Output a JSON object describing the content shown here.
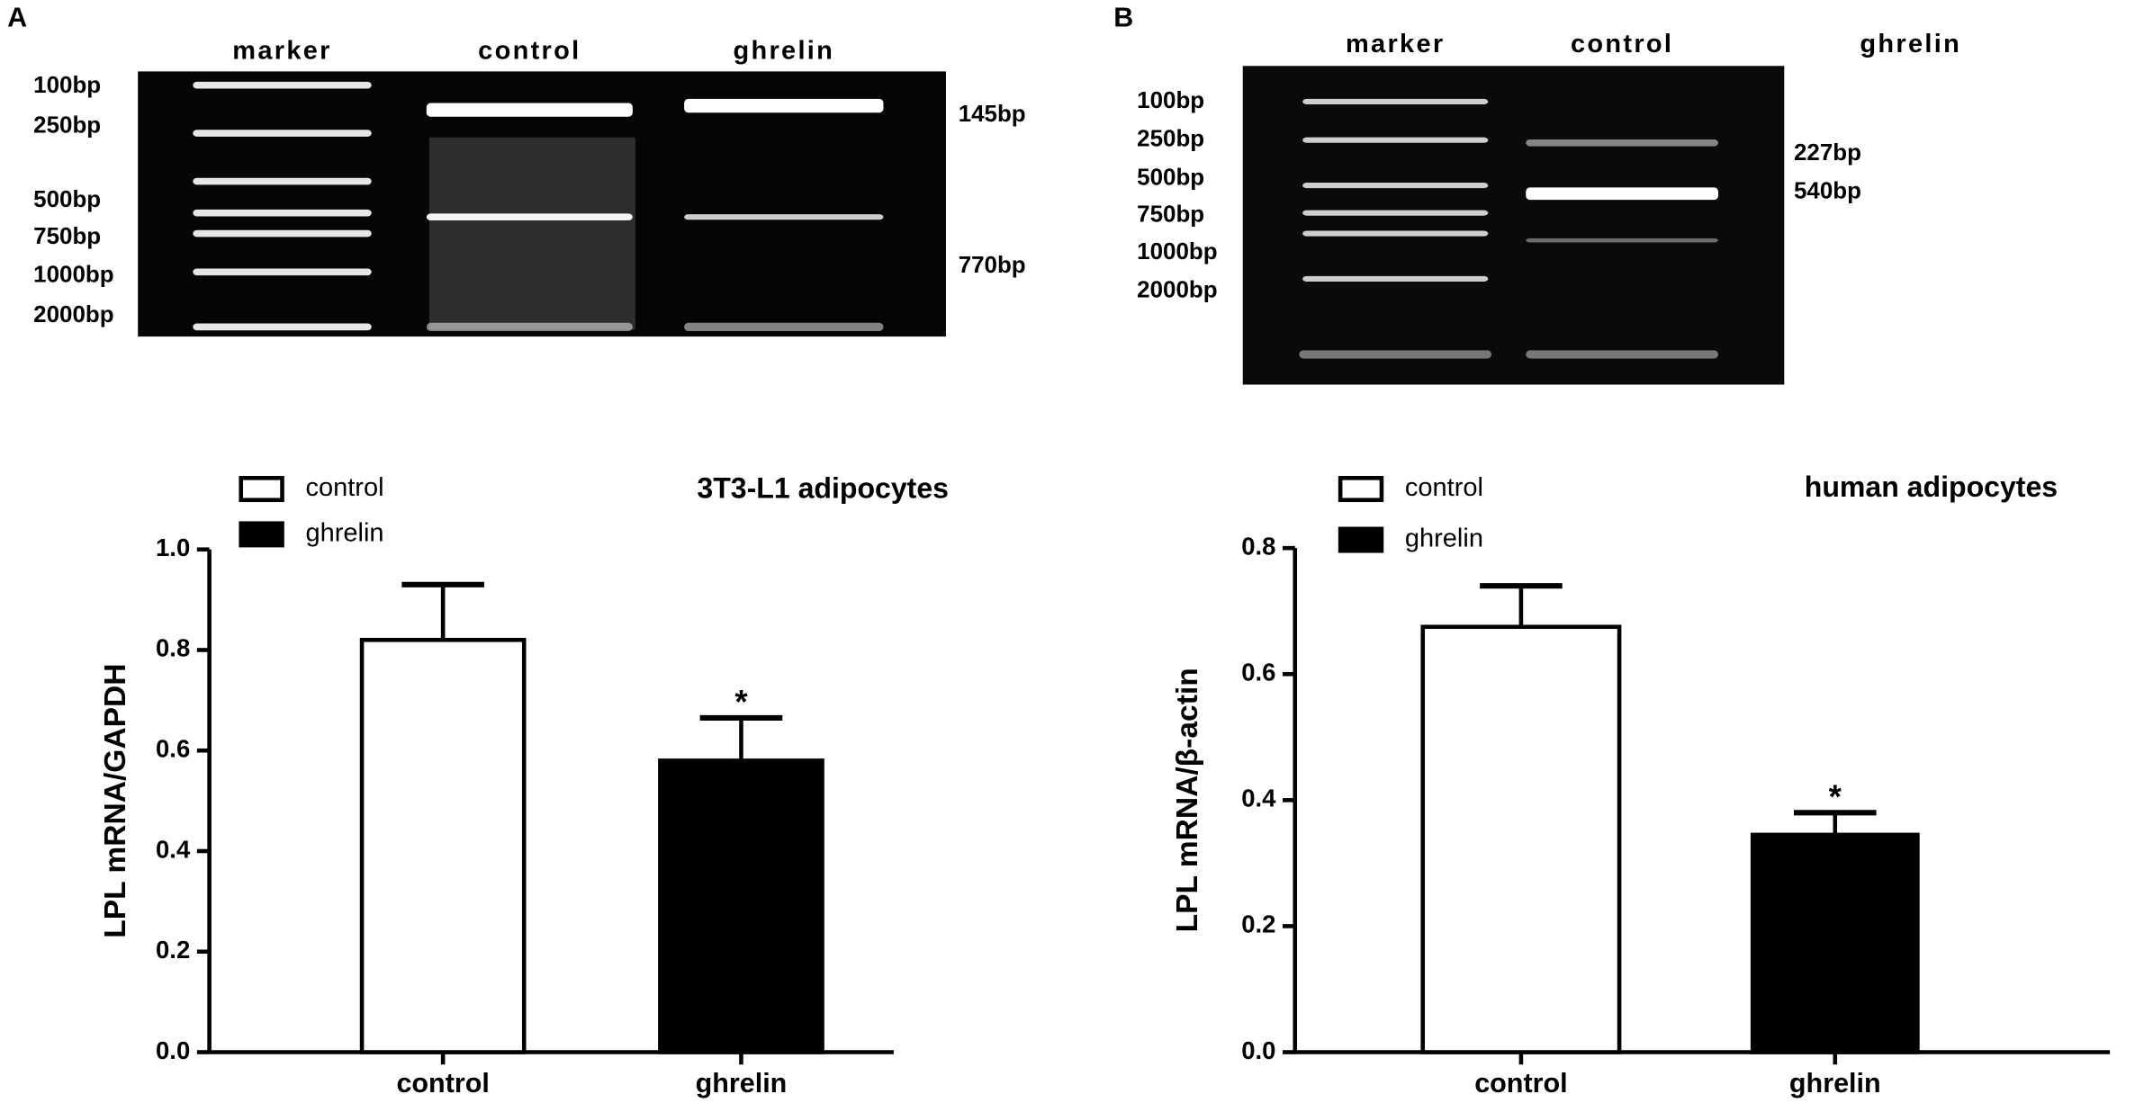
{
  "gels": [
    {
      "panel_label": "A",
      "lanes": [
        "marker",
        "control",
        "ghrelin"
      ],
      "marker_labels": [
        "100bp",
        "250bp",
        "500bp",
        "750bp",
        "1000bp",
        "2000bp"
      ],
      "band_labels": [
        "145bp",
        "770bp"
      ]
    },
    {
      "panel_label": "B",
      "lanes": [
        "marker",
        "control",
        "ghrelin"
      ],
      "marker_labels": [
        "100bp",
        "250bp",
        "500bp",
        "750bp",
        "1000bp",
        "2000bp"
      ],
      "band_labels": [
        "227bp",
        "540bp"
      ]
    }
  ],
  "chart_data": [
    {
      "type": "bar",
      "title": "3T3-L1 adipocytes",
      "y_label": "LPL mRNA/GAPDH",
      "categories": [
        "control",
        "ghrelin"
      ],
      "series": [
        {
          "name": "control",
          "color": "#ffffff",
          "values": [
            0.82,
            null
          ],
          "errors": [
            0.11,
            null
          ]
        },
        {
          "name": "ghrelin",
          "color": "#000000",
          "values": [
            null,
            0.58
          ],
          "errors": [
            null,
            0.085
          ]
        }
      ],
      "value_annotations": [
        null,
        "*"
      ],
      "ylim": [
        0,
        1.0
      ],
      "yticks": [
        {
          "value": 0,
          "label": "0.0"
        },
        0.2,
        0.4,
        0.6,
        0.8,
        {
          "value": 1.0,
          "label": "1.0"
        }
      ],
      "grid": false,
      "legend": "top-left"
    },
    {
      "type": "bar",
      "title": "human adipocytes",
      "y_label": "LPL mRNA/β-actin",
      "categories": [
        "control",
        "ghrelin"
      ],
      "series": [
        {
          "name": "control",
          "color": "#ffffff",
          "values": [
            0.675,
            null
          ],
          "errors": [
            0.065,
            null
          ]
        },
        {
          "name": "ghrelin",
          "color": "#000000",
          "values": [
            null,
            0.345
          ],
          "errors": [
            null,
            0.035
          ]
        }
      ],
      "value_annotations": [
        null,
        "*"
      ],
      "ylim": [
        0,
        0.8
      ],
      "yticks": [
        {
          "value": 0,
          "label": "0.0"
        },
        0.2,
        0.4,
        0.6,
        0.8
      ],
      "grid": false,
      "legend": "top-left"
    }
  ]
}
